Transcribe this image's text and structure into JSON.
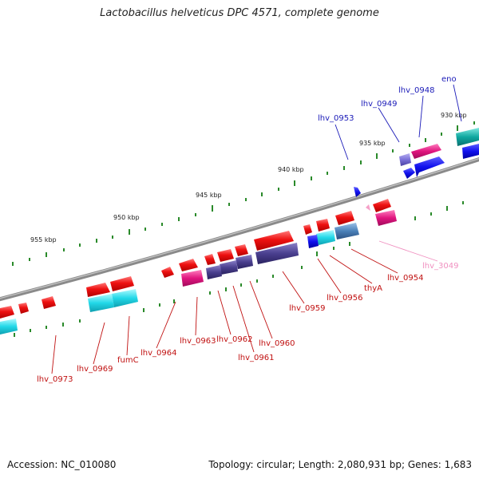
{
  "title": "Lactobacillus helveticus DPC 4571, complete genome",
  "footer": {
    "accession": "Accession: NC_010080",
    "summary": "Topology: circular; Length: 2,080,931 bp; Genes: 1,683"
  },
  "colors": {
    "backbone": "#8a8a8a",
    "tick": "#2a8a2a",
    "red_feature": "#ee1111",
    "magenta_feature": "#e0157f",
    "cyan_feature": "#22d8e8",
    "blue_feature": "#1010ee",
    "purple_feature": "#4a3f8f",
    "blue_label": "#1a1ab8",
    "red_label": "#c01010",
    "pink_label": "#f090c0"
  },
  "scale_labels": [
    "930 kbp",
    "935 kbp",
    "940 kbp",
    "945 kbp",
    "950 kbp",
    "955 kbp"
  ],
  "gene_labels": [
    {
      "text": "eno",
      "color": "blue"
    },
    {
      "text": "lhv_0948",
      "color": "blue"
    },
    {
      "text": "lhv_0949",
      "color": "blue"
    },
    {
      "text": "lhv_0953",
      "color": "blue"
    },
    {
      "text": "lhv_3049",
      "color": "pink"
    },
    {
      "text": "lhv_0954",
      "color": "red"
    },
    {
      "text": "thyA",
      "color": "red"
    },
    {
      "text": "lhv_0956",
      "color": "red"
    },
    {
      "text": "lhv_0959",
      "color": "red"
    },
    {
      "text": "lhv_0960",
      "color": "red"
    },
    {
      "text": "lhv_0961",
      "color": "red"
    },
    {
      "text": "lhv_0962",
      "color": "red"
    },
    {
      "text": "lhv_0963",
      "color": "red"
    },
    {
      "text": "lhv_0964",
      "color": "red"
    },
    {
      "text": "fumC",
      "color": "red"
    },
    {
      "text": "lhv_0969",
      "color": "red"
    },
    {
      "text": "lhv_0973",
      "color": "red"
    }
  ]
}
